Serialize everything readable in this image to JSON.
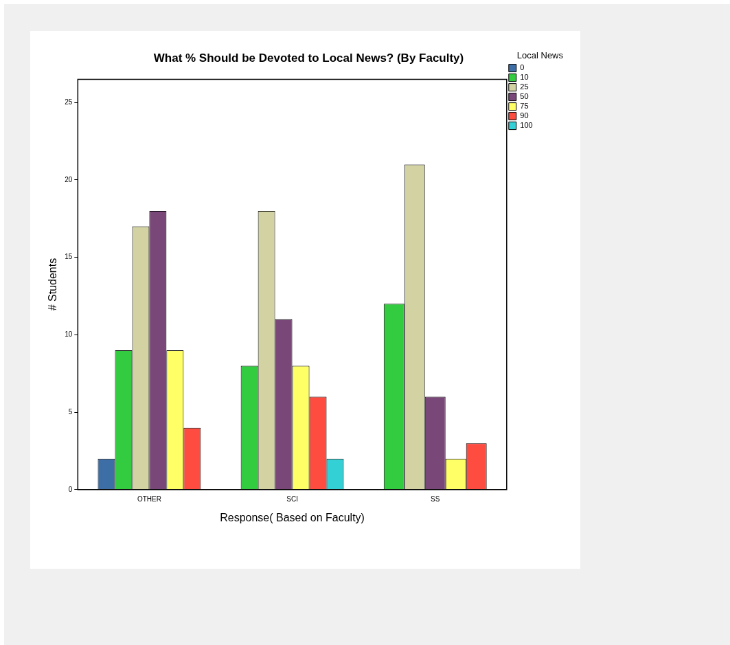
{
  "chart_data": {
    "type": "bar",
    "title": "What % Should be Devoted to Local News? (By Faculty)",
    "xlabel": "Response( Based on Faculty)",
    "ylabel": "# Students",
    "legend_title": "Local News",
    "categories": [
      "OTHER",
      "SCI",
      "SS"
    ],
    "series": [
      {
        "name": "0",
        "color": "#3d6fa6",
        "values": [
          2,
          null,
          null
        ]
      },
      {
        "name": "10",
        "color": "#33cc40",
        "values": [
          9,
          8,
          12
        ]
      },
      {
        "name": "25",
        "color": "#d2d2a2",
        "values": [
          17,
          18,
          21
        ]
      },
      {
        "name": "50",
        "color": "#7a4878",
        "values": [
          18,
          11,
          6
        ]
      },
      {
        "name": "75",
        "color": "#ffff66",
        "values": [
          9,
          8,
          2
        ]
      },
      {
        "name": "90",
        "color": "#ff4c40",
        "values": [
          4,
          6,
          3
        ]
      },
      {
        "name": "100",
        "color": "#33d0d6",
        "values": [
          null,
          2,
          null
        ]
      }
    ],
    "ylim": [
      0,
      26.5
    ],
    "yticks": [
      0,
      5,
      10,
      15,
      20,
      25
    ],
    "grid": false,
    "legend": "top right"
  }
}
